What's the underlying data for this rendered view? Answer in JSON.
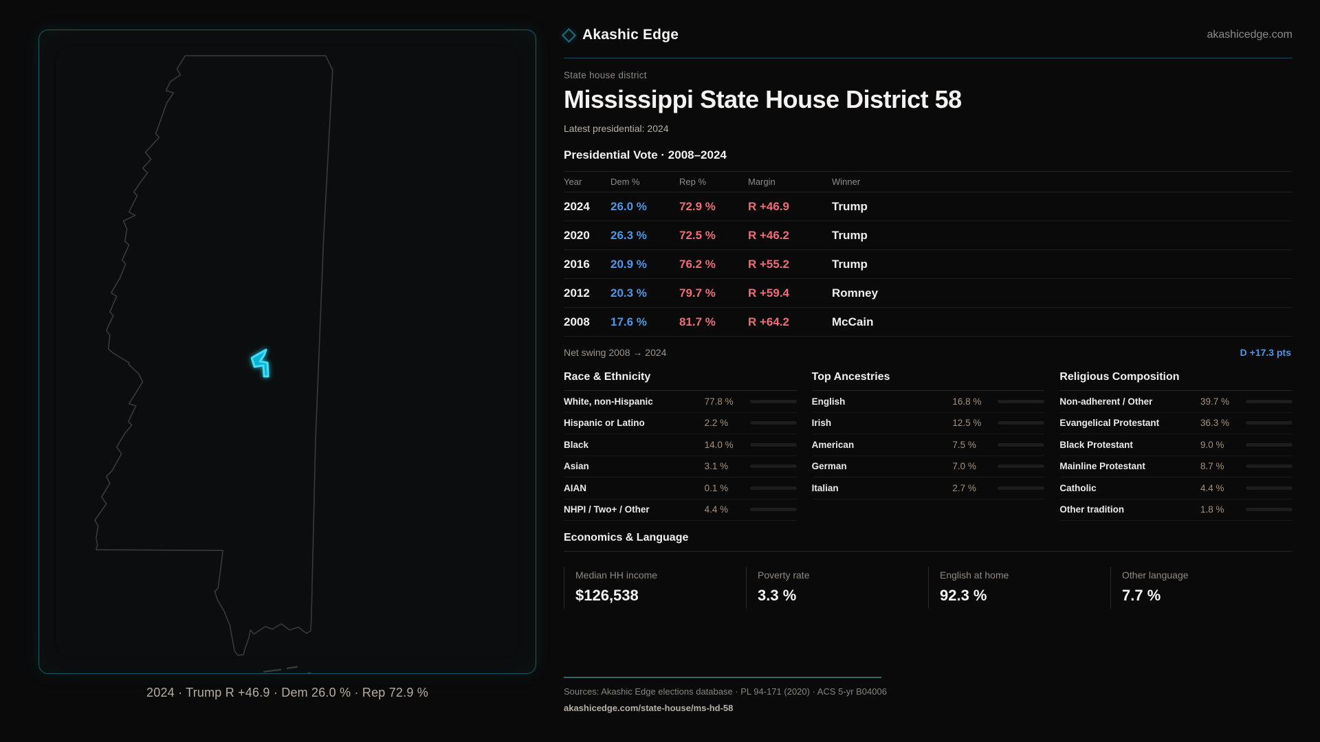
{
  "brand": {
    "name": "Akashic Edge",
    "domain": "akashicedge.com"
  },
  "header": {
    "eyebrow": "State house district",
    "title": "Mississippi State House District 58",
    "subtitle": "Latest presidential: 2024"
  },
  "map": {
    "caption": "2024 · Trump R +46.9 · Dem 26.0 % · Rep 72.9 %",
    "outline_color": "#3a3a3d",
    "district_color": "#3fd9f6"
  },
  "vote_table": {
    "title": "Presidential Vote · 2008–2024",
    "columns": [
      "Year",
      "Dem %",
      "Rep %",
      "Margin",
      "Winner"
    ],
    "rows": [
      {
        "year": "2024",
        "dem": "26.0 %",
        "rep": "72.9 %",
        "margin": "R +46.9",
        "winner": "Trump"
      },
      {
        "year": "2020",
        "dem": "26.3 %",
        "rep": "72.5 %",
        "margin": "R +46.2",
        "winner": "Trump"
      },
      {
        "year": "2016",
        "dem": "20.9 %",
        "rep": "76.2 %",
        "margin": "R +55.2",
        "winner": "Trump"
      },
      {
        "year": "2012",
        "dem": "20.3 %",
        "rep": "79.7 %",
        "margin": "R +59.4",
        "winner": "Romney"
      },
      {
        "year": "2008",
        "dem": "17.6 %",
        "rep": "81.7 %",
        "margin": "R +64.2",
        "winner": "McCain"
      }
    ]
  },
  "net_swing": {
    "label": "Net swing 2008 → 2024",
    "value": "D +17.3 pts"
  },
  "panels": [
    {
      "title": "Race & Ethnicity",
      "rows": [
        {
          "label": "White, non-Hispanic",
          "value": "77.8 %",
          "pct": 77.8
        },
        {
          "label": "Hispanic or Latino",
          "value": "2.2 %",
          "pct": 2.2
        },
        {
          "label": "Black",
          "value": "14.0 %",
          "pct": 14.0
        },
        {
          "label": "Asian",
          "value": "3.1 %",
          "pct": 3.1
        },
        {
          "label": "AIAN",
          "value": "0.1 %",
          "pct": 0.1
        },
        {
          "label": "NHPI / Two+ / Other",
          "value": "4.4 %",
          "pct": 4.4
        }
      ]
    },
    {
      "title": "Top Ancestries",
      "rows": [
        {
          "label": "English",
          "value": "16.8 %",
          "pct": 16.8
        },
        {
          "label": "Irish",
          "value": "12.5 %",
          "pct": 12.5
        },
        {
          "label": "American",
          "value": "7.5 %",
          "pct": 7.5
        },
        {
          "label": "German",
          "value": "7.0 %",
          "pct": 7.0
        },
        {
          "label": "Italian",
          "value": "2.7 %",
          "pct": 2.7
        }
      ]
    },
    {
      "title": "Religious Composition",
      "rows": [
        {
          "label": "Non-adherent / Other",
          "value": "39.7 %",
          "pct": 39.7
        },
        {
          "label": "Evangelical Protestant",
          "value": "36.3 %",
          "pct": 36.3
        },
        {
          "label": "Black Protestant",
          "value": "9.0 %",
          "pct": 9.0
        },
        {
          "label": "Mainline Protestant",
          "value": "8.7 %",
          "pct": 8.7
        },
        {
          "label": "Catholic",
          "value": "4.4 %",
          "pct": 4.4
        },
        {
          "label": "Other tradition",
          "value": "1.8 %",
          "pct": 1.8
        }
      ]
    }
  ],
  "economics": {
    "title": "Economics & Language",
    "stats": [
      {
        "label": "Median HH income",
        "value": "$126,538"
      },
      {
        "label": "Poverty rate",
        "value": "3.3 %"
      },
      {
        "label": "English at home",
        "value": "92.3 %"
      },
      {
        "label": "Other language",
        "value": "7.7 %"
      }
    ]
  },
  "footer": {
    "sources": "Sources: Akashic Edge elections database · PL 94-171 (2020) · ACS 5-yr B04006",
    "url": "akashicedge.com/state-house/ms-hd-58"
  },
  "colors": {
    "dem": "#4d96e8",
    "rep": "#ee6d78",
    "accent_teal": "#1d5a66",
    "swing": "#4d96e8"
  }
}
